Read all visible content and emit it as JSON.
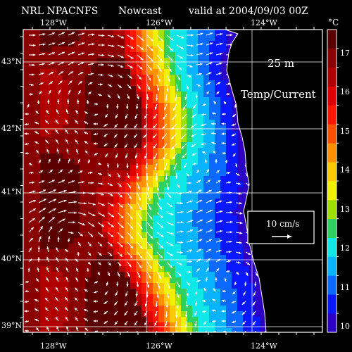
{
  "header": {
    "source": "NRL NPACNFS",
    "product": "Nowcast",
    "valid": "valid at 2004/09/03 00Z"
  },
  "units": "°C",
  "depth_label": "25 m",
  "field_label": "Temp/Current",
  "vector_scale": {
    "label": "10 cm/s",
    "speed_cm_s": 10
  },
  "longitude_labels": [
    "128°W",
    "126°W",
    "124°W"
  ],
  "latitude_labels": [
    "43°N",
    "42°N",
    "41°N",
    "40°N",
    "39°N"
  ],
  "colorbar": {
    "min": 9.5,
    "max": 17.5,
    "labels": [
      "17",
      "16",
      "15",
      "14",
      "13",
      "12",
      "11",
      "10"
    ],
    "colors": [
      "#2b00c4",
      "#0a18ff",
      "#0a6aff",
      "#08b4ff",
      "#10e8e8",
      "#30d060",
      "#a0e000",
      "#f0f000",
      "#ffc800",
      "#ff9000",
      "#ff5000",
      "#ff1800",
      "#e00000",
      "#b00000",
      "#8a0000",
      "#5a0000"
    ]
  },
  "colors": {
    "land": "#000000",
    "frame": "#ffffff",
    "vectors": "#ffffff"
  }
}
